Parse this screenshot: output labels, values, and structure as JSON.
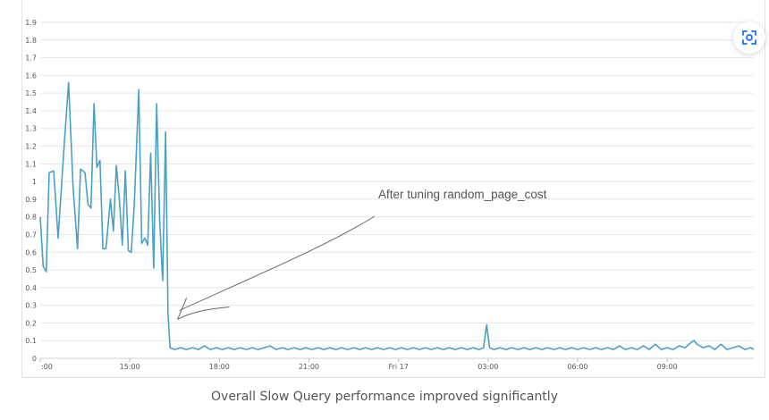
{
  "caption": "Overall Slow Query performance improved significantly",
  "zoom_button": {
    "icon": "zoom-focus-icon"
  },
  "colors": {
    "series": "#4aa0c4",
    "grid": "#e6e6e6",
    "annotation": "#666666"
  },
  "chart_data": {
    "type": "line",
    "title": "",
    "xlabel": "",
    "ylabel": "",
    "ylim": [
      0,
      1.9
    ],
    "yticks": [
      "0",
      "0.1",
      "0.2",
      "0.3",
      "0.4",
      "0.5",
      "0.6",
      "0.7",
      "0.8",
      "0.9",
      "1",
      "1.1",
      "1.2",
      "1.3",
      "1.4",
      "1.5",
      "1.6",
      "1.7",
      "1.8",
      "1.9"
    ],
    "xlim_hours": [
      12,
      35.9
    ],
    "xticks": [
      {
        "hour": 12,
        "label": ":00"
      },
      {
        "hour": 15,
        "label": "15:00"
      },
      {
        "hour": 18,
        "label": "18:00"
      },
      {
        "hour": 21,
        "label": "21:00"
      },
      {
        "hour": 24,
        "label": "Fri 17"
      },
      {
        "hour": 27,
        "label": "03:00"
      },
      {
        "hour": 30,
        "label": "06:00"
      },
      {
        "hour": 33,
        "label": "09:00"
      }
    ],
    "grid": true,
    "annotation": {
      "text": "After tuning random_page_cost",
      "arrow_to_hour": 16.6,
      "arrow_to_value": 0.22
    },
    "series": [
      {
        "values": [
          [
            12.0,
            0.8
          ],
          [
            12.1,
            0.52
          ],
          [
            12.2,
            0.49
          ],
          [
            12.3,
            1.05
          ],
          [
            12.45,
            1.06
          ],
          [
            12.6,
            0.68
          ],
          [
            12.8,
            1.2
          ],
          [
            12.95,
            1.56
          ],
          [
            13.1,
            0.97
          ],
          [
            13.25,
            0.62
          ],
          [
            13.35,
            1.07
          ],
          [
            13.5,
            1.05
          ],
          [
            13.6,
            0.87
          ],
          [
            13.7,
            0.85
          ],
          [
            13.8,
            1.44
          ],
          [
            13.9,
            1.08
          ],
          [
            14.0,
            1.12
          ],
          [
            14.1,
            0.62
          ],
          [
            14.2,
            0.62
          ],
          [
            14.35,
            0.9
          ],
          [
            14.45,
            0.72
          ],
          [
            14.55,
            1.09
          ],
          [
            14.65,
            0.9
          ],
          [
            14.75,
            0.64
          ],
          [
            14.85,
            1.06
          ],
          [
            14.95,
            0.61
          ],
          [
            15.05,
            0.6
          ],
          [
            15.15,
            0.87
          ],
          [
            15.3,
            1.52
          ],
          [
            15.4,
            0.65
          ],
          [
            15.5,
            0.68
          ],
          [
            15.6,
            0.64
          ],
          [
            15.7,
            1.16
          ],
          [
            15.8,
            0.51
          ],
          [
            15.9,
            1.44
          ],
          [
            16.0,
            0.78
          ],
          [
            16.1,
            0.44
          ],
          [
            16.2,
            1.28
          ],
          [
            16.28,
            0.25
          ],
          [
            16.35,
            0.06
          ],
          [
            16.5,
            0.05
          ],
          [
            16.7,
            0.06
          ],
          [
            16.9,
            0.05
          ],
          [
            17.1,
            0.06
          ],
          [
            17.3,
            0.05
          ],
          [
            17.5,
            0.07
          ],
          [
            17.7,
            0.05
          ],
          [
            17.9,
            0.06
          ],
          [
            18.1,
            0.05
          ],
          [
            18.3,
            0.06
          ],
          [
            18.5,
            0.05
          ],
          [
            18.7,
            0.06
          ],
          [
            18.9,
            0.05
          ],
          [
            19.1,
            0.06
          ],
          [
            19.3,
            0.05
          ],
          [
            19.5,
            0.06
          ],
          [
            19.7,
            0.07
          ],
          [
            19.9,
            0.05
          ],
          [
            20.1,
            0.06
          ],
          [
            20.3,
            0.05
          ],
          [
            20.5,
            0.06
          ],
          [
            20.7,
            0.05
          ],
          [
            20.9,
            0.06
          ],
          [
            21.1,
            0.05
          ],
          [
            21.3,
            0.06
          ],
          [
            21.5,
            0.05
          ],
          [
            21.7,
            0.06
          ],
          [
            21.9,
            0.05
          ],
          [
            22.1,
            0.06
          ],
          [
            22.3,
            0.05
          ],
          [
            22.5,
            0.06
          ],
          [
            22.7,
            0.05
          ],
          [
            22.9,
            0.06
          ],
          [
            23.1,
            0.05
          ],
          [
            23.3,
            0.06
          ],
          [
            23.5,
            0.05
          ],
          [
            23.7,
            0.06
          ],
          [
            23.9,
            0.05
          ],
          [
            24.1,
            0.06
          ],
          [
            24.3,
            0.05
          ],
          [
            24.5,
            0.06
          ],
          [
            24.7,
            0.05
          ],
          [
            24.9,
            0.06
          ],
          [
            25.1,
            0.05
          ],
          [
            25.3,
            0.06
          ],
          [
            25.5,
            0.05
          ],
          [
            25.7,
            0.06
          ],
          [
            25.9,
            0.05
          ],
          [
            26.1,
            0.06
          ],
          [
            26.3,
            0.05
          ],
          [
            26.5,
            0.06
          ],
          [
            26.7,
            0.05
          ],
          [
            26.85,
            0.06
          ],
          [
            26.95,
            0.19
          ],
          [
            27.05,
            0.06
          ],
          [
            27.2,
            0.05
          ],
          [
            27.4,
            0.06
          ],
          [
            27.6,
            0.05
          ],
          [
            27.8,
            0.06
          ],
          [
            28.0,
            0.05
          ],
          [
            28.2,
            0.06
          ],
          [
            28.4,
            0.05
          ],
          [
            28.6,
            0.06
          ],
          [
            28.8,
            0.05
          ],
          [
            29.0,
            0.06
          ],
          [
            29.2,
            0.05
          ],
          [
            29.4,
            0.06
          ],
          [
            29.6,
            0.05
          ],
          [
            29.8,
            0.06
          ],
          [
            30.0,
            0.05
          ],
          [
            30.2,
            0.06
          ],
          [
            30.4,
            0.05
          ],
          [
            30.6,
            0.06
          ],
          [
            30.8,
            0.05
          ],
          [
            31.0,
            0.06
          ],
          [
            31.2,
            0.05
          ],
          [
            31.4,
            0.07
          ],
          [
            31.6,
            0.05
          ],
          [
            31.8,
            0.06
          ],
          [
            32.0,
            0.05
          ],
          [
            32.2,
            0.07
          ],
          [
            32.4,
            0.05
          ],
          [
            32.6,
            0.08
          ],
          [
            32.8,
            0.05
          ],
          [
            33.0,
            0.06
          ],
          [
            33.2,
            0.05
          ],
          [
            33.4,
            0.07
          ],
          [
            33.6,
            0.06
          ],
          [
            33.8,
            0.09
          ],
          [
            33.9,
            0.1
          ],
          [
            34.0,
            0.08
          ],
          [
            34.2,
            0.06
          ],
          [
            34.4,
            0.07
          ],
          [
            34.6,
            0.05
          ],
          [
            34.8,
            0.08
          ],
          [
            35.0,
            0.05
          ],
          [
            35.2,
            0.06
          ],
          [
            35.4,
            0.07
          ],
          [
            35.6,
            0.05
          ],
          [
            35.8,
            0.06
          ],
          [
            35.9,
            0.05
          ]
        ]
      }
    ]
  }
}
